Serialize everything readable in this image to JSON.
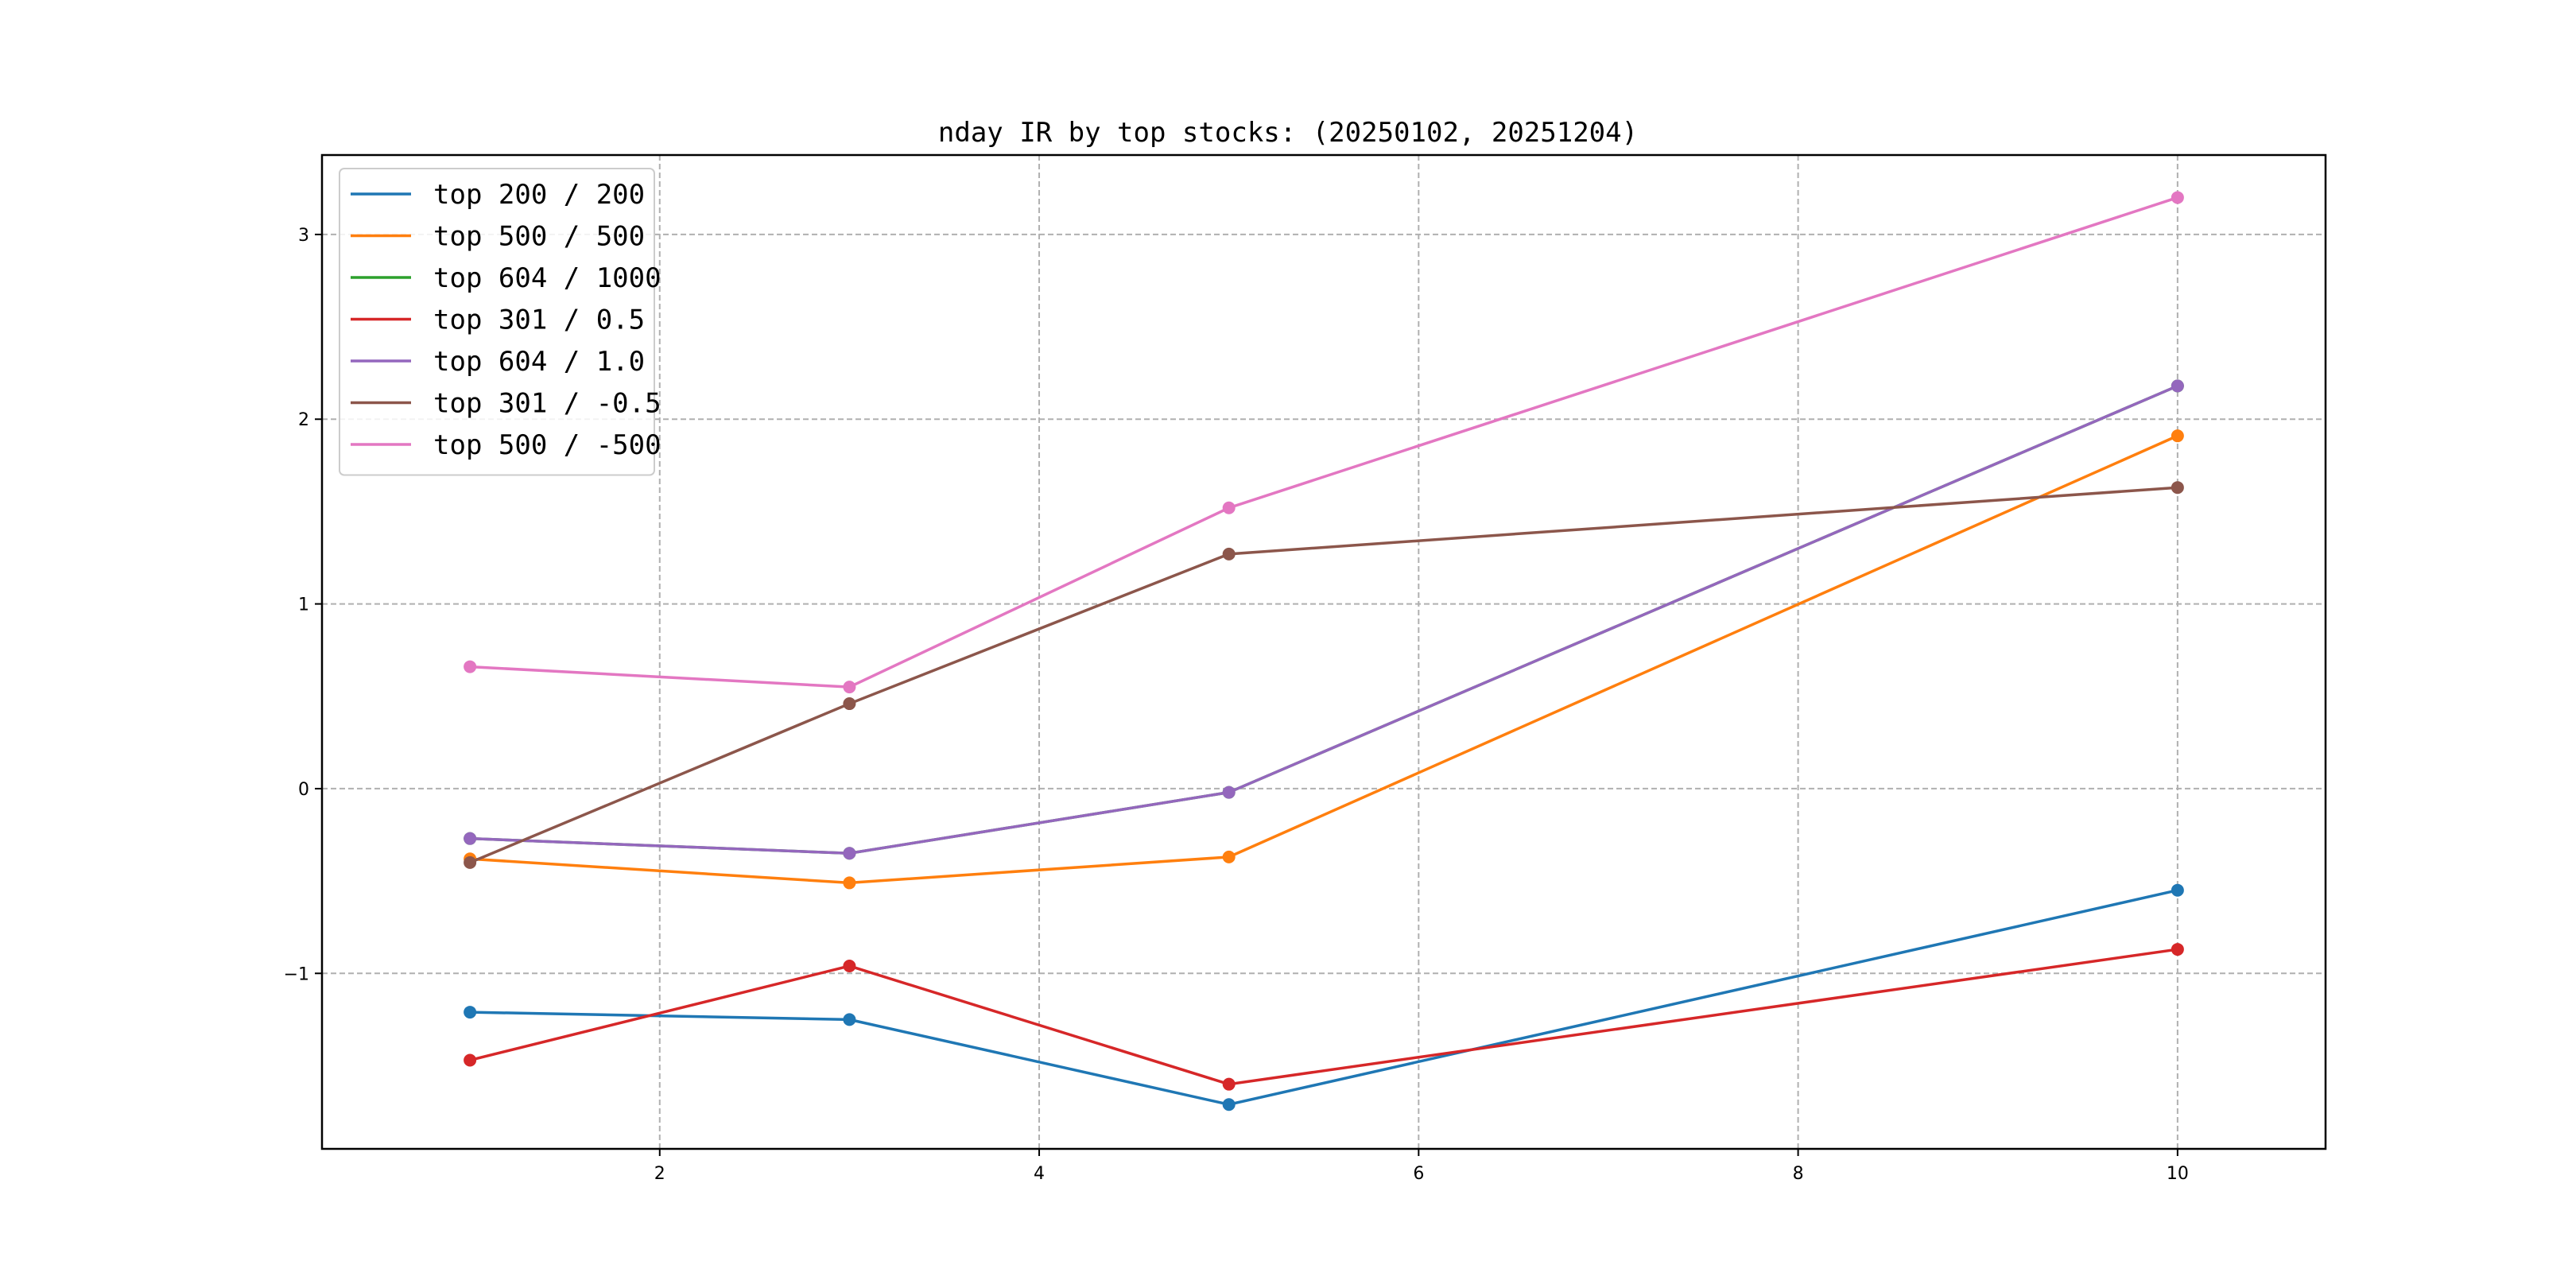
{
  "chart_data": {
    "type": "line",
    "title": "nday IR by top stocks: (20250102, 20251204)",
    "xlabel": "",
    "ylabel": "",
    "xlim": [
      0.22,
      10.78
    ],
    "ylim": [
      -1.95,
      3.43
    ],
    "xticks": [
      2,
      4,
      6,
      8,
      10
    ],
    "yticks": [
      -1,
      0,
      1,
      2,
      3
    ],
    "grid": true,
    "legend_position": "top-left",
    "x": [
      1,
      3,
      5,
      10
    ],
    "series": [
      {
        "name": "top 200 / 200",
        "color": "#1f77b4",
        "values": [
          -1.21,
          -1.25,
          -1.71,
          -0.55
        ]
      },
      {
        "name": "top 500 / 500",
        "color": "#ff7f0e",
        "values": [
          -0.38,
          -0.51,
          -0.37,
          1.91
        ]
      },
      {
        "name": "top 604 / 1000",
        "color": "#2ca02c",
        "values": [
          -0.27,
          -0.35,
          -0.02,
          2.18
        ]
      },
      {
        "name": "top 301 / 0.5",
        "color": "#d62728",
        "values": [
          -1.47,
          -0.96,
          -1.6,
          -0.87
        ]
      },
      {
        "name": "top 604 / 1.0",
        "color": "#9467bd",
        "values": [
          -0.27,
          -0.35,
          -0.02,
          2.18
        ]
      },
      {
        "name": "top 301 / -0.5",
        "color": "#8c564b",
        "values": [
          -0.4,
          0.46,
          1.27,
          1.63
        ]
      },
      {
        "name": "top 500 / -500",
        "color": "#e377c2",
        "values": [
          0.66,
          0.55,
          1.52,
          3.2
        ]
      }
    ]
  }
}
